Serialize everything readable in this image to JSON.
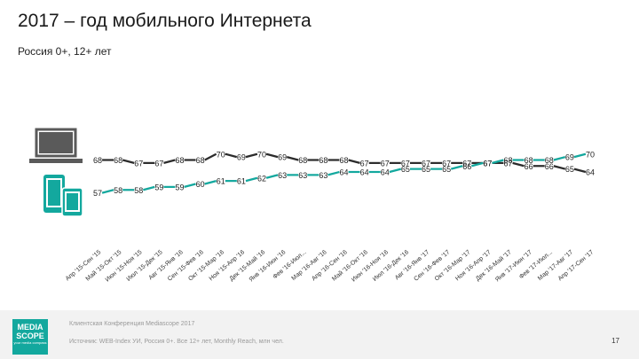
{
  "slide": {
    "title": "2017 – год мобильного Интернета",
    "subtitle": "Россия 0+, 12+ лет",
    "page_number": "17"
  },
  "footer": {
    "conference": "Клиентская Конференция Mediascope 2017",
    "source": "Источник: WEB-Index УИ, Россия 0+. Все 12+ лет, Monthly Reach, млн чел.",
    "logo_line1": "MEDIA",
    "logo_line2": "SCOPE",
    "logo_tag": "your media compass"
  },
  "icons": {
    "desktop": "laptop-icon",
    "mobile": "tablet-phone-icon"
  },
  "colors": {
    "desktop_line": "#2b2b2b",
    "mobile_line": "#13a89e",
    "device_icon": "#5a5a5a",
    "mobile_icon": "#13a89e"
  },
  "chart_data": {
    "type": "line",
    "categories": [
      "Апр '15-Сен '15",
      "Май '15-Окт '15",
      "Июн '15-Ноя '15",
      "Июл '15-Дек '15",
      "Авг '15-Янв '16",
      "Сен '15-Фев '16",
      "Окт '15-Мар '16",
      "Ноя '15-Апр '16",
      "Дек '15-Май '16",
      "Янв '16-Июн '16",
      "Фев '16-Июл...",
      "Мар '16-Авг '16",
      "Апр '16-Сен '16",
      "Май '16-Окт '16",
      "Июн '16-Ноя '16",
      "Июл '16-Дек '16",
      "Авг '16-Янв '17",
      "Сен '16-Фев '17",
      "Окт '16-Мар '17",
      "Ноя '16-Апр '17",
      "Дек '16-Май '17",
      "Янв '17-Июн '17",
      "Фев '17-Июл...",
      "Мар '17-Авг '17",
      "Апр '17-Сен '17"
    ],
    "series": [
      {
        "values": [
          68,
          68,
          67,
          67,
          68,
          68,
          70,
          69,
          70,
          69,
          68,
          68,
          68,
          67,
          67,
          67,
          67,
          67,
          67,
          67,
          67,
          66,
          66,
          65,
          64
        ]
      },
      {
        "values": [
          57,
          58,
          58,
          59,
          59,
          60,
          61,
          61,
          62,
          63,
          63,
          63,
          64,
          64,
          64,
          65,
          65,
          65,
          66,
          67,
          68,
          68,
          68,
          69,
          70
        ]
      }
    ],
    "ylim": [
      40,
      80
    ],
    "grid": false,
    "legend": "none"
  }
}
